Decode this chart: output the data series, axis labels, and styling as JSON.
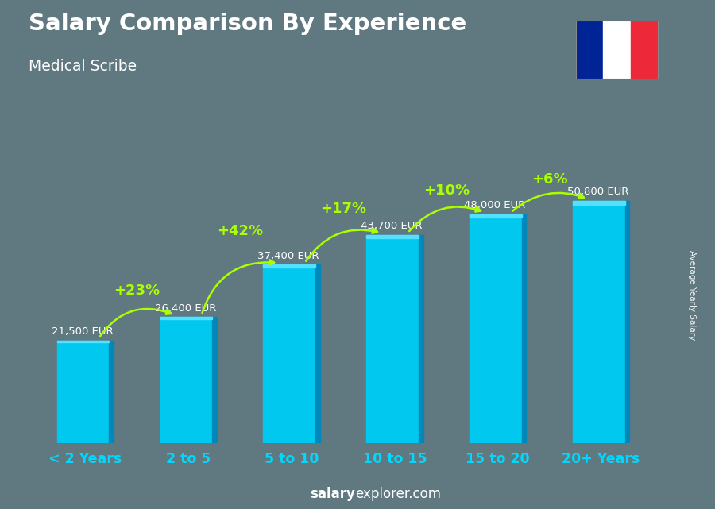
{
  "title": "Salary Comparison By Experience",
  "subtitle": "Medical Scribe",
  "categories": [
    "< 2 Years",
    "2 to 5",
    "5 to 10",
    "10 to 15",
    "15 to 20",
    "20+ Years"
  ],
  "values": [
    21500,
    26400,
    37400,
    43700,
    48000,
    50800
  ],
  "salary_labels": [
    "21,500 EUR",
    "26,400 EUR",
    "37,400 EUR",
    "43,700 EUR",
    "48,000 EUR",
    "50,800 EUR"
  ],
  "pct_labels": [
    "+23%",
    "+42%",
    "+17%",
    "+10%",
    "+6%"
  ],
  "bar_face_color": "#00c8ee",
  "bar_dark_color": "#0088bb",
  "bar_top_color": "#55e0ff",
  "background_color": "#607880",
  "title_color": "#ffffff",
  "subtitle_color": "#ffffff",
  "label_color": "#00d8ff",
  "pct_color": "#aaff00",
  "ylabel_text": "Average Yearly Salary",
  "ylim_max": 62000,
  "flag_colors": [
    "#002395",
    "#ffffff",
    "#ED2939"
  ],
  "footer_salary": "salary",
  "footer_rest": "explorer.com"
}
